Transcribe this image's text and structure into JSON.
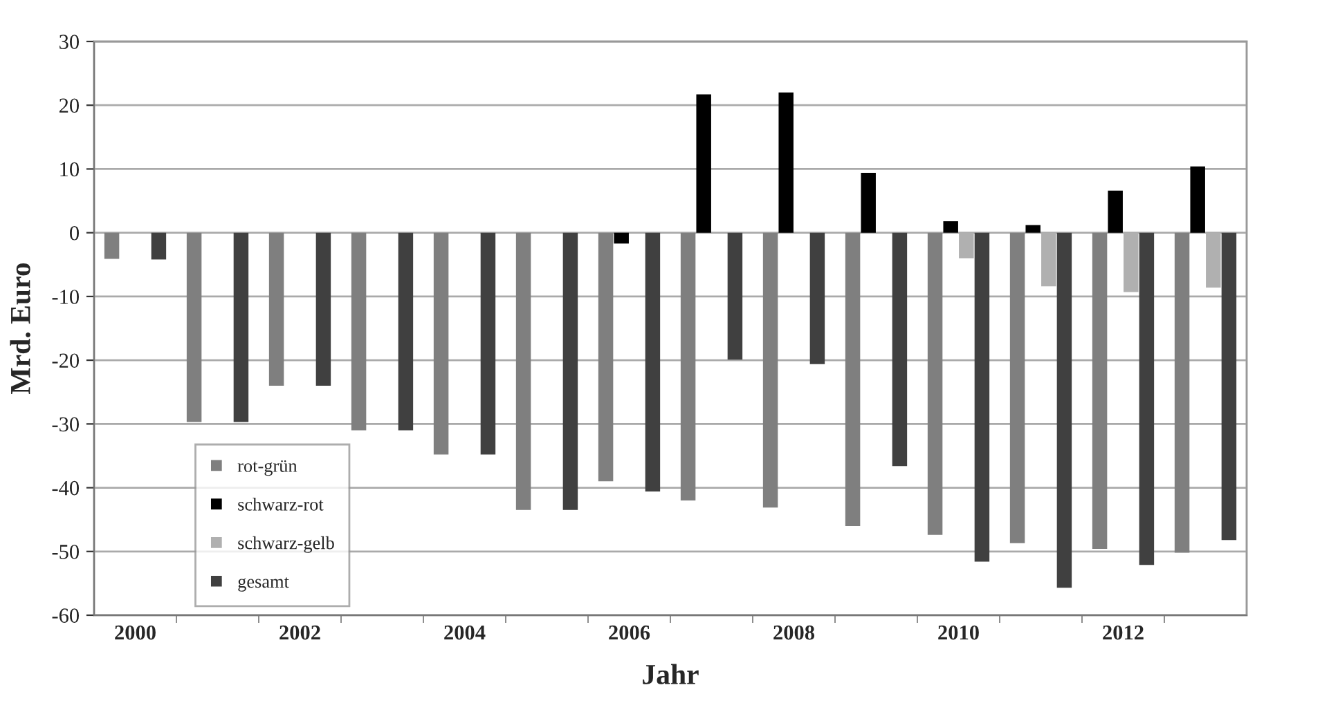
{
  "chart_data": {
    "type": "bar",
    "xlabel": "Jahr",
    "ylabel": "Mrd. Euro",
    "categories": [
      "2000",
      null,
      "2002",
      null,
      "2004",
      null,
      "2006",
      null,
      "2008",
      null,
      "2010",
      null,
      "2012",
      null
    ],
    "series": [
      {
        "name": "rot-grün",
        "color": "#7f7f7f",
        "values": [
          -4.1,
          -29.7,
          -24,
          -31,
          -34.8,
          -43.5,
          -39,
          -42,
          -43.1,
          -46,
          -47.4,
          -48.7,
          -49.6,
          -50.2
        ]
      },
      {
        "name": "schwarz-rot",
        "color": "#000000",
        "values": [
          null,
          null,
          null,
          null,
          null,
          null,
          -1.7,
          21.7,
          22,
          9.4,
          1.8,
          1.2,
          6.6,
          10.4
        ]
      },
      {
        "name": "schwarz-gelb",
        "color": "#b0b0b0",
        "values": [
          null,
          null,
          null,
          null,
          null,
          null,
          null,
          null,
          null,
          null,
          -4,
          -8.4,
          -9.3,
          -8.6
        ]
      },
      {
        "name": "gesamt",
        "color": "#404040",
        "values": [
          -4.2,
          -29.7,
          -24,
          -31,
          -34.8,
          -43.5,
          -40.6,
          -19.9,
          -20.6,
          -36.6,
          -51.6,
          -55.7,
          -52.1,
          -48.2
        ]
      }
    ],
    "ylim": [
      -60,
      30
    ],
    "yticks": [
      -60,
      -50,
      -40,
      -30,
      -20,
      -10,
      0,
      10,
      20,
      30
    ],
    "grid": "y",
    "legend": "bottom left"
  }
}
